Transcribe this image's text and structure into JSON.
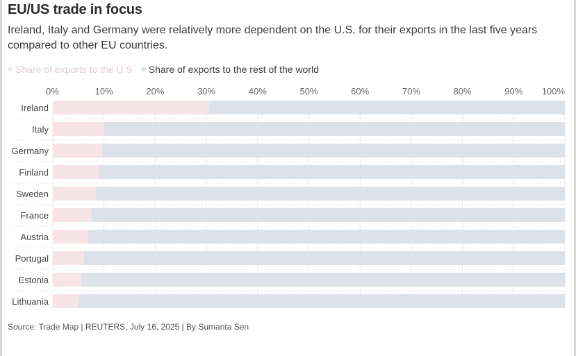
{
  "title": "EU/US trade in focus",
  "subtitle": "Ireland, Italy and Germany were relatively more dependent on the U.S. for their exports in the last five years compared to other EU countries.",
  "legend": [
    {
      "label": "Share of exports to the U.S",
      "color": "#f7e4e6"
    },
    {
      "label": "Share of exports to the rest of the world",
      "color": "#dde1ea"
    }
  ],
  "source": "Source: Trade Map | REUTERS, July 16, 2025 | By Sumanta Sen",
  "chart_data": {
    "type": "bar",
    "orientation": "horizontal",
    "stacked": true,
    "categories": [
      "Ireland",
      "Italy",
      "Germany",
      "Finland",
      "Sweden",
      "France",
      "Austria",
      "Portugal",
      "Estonia",
      "Lithuania"
    ],
    "series": [
      {
        "name": "Share of exports to the U.S",
        "color": "#f7e4e6",
        "values": [
          30.5,
          10.0,
          9.6,
          8.9,
          8.4,
          7.5,
          6.9,
          6.1,
          5.6,
          5.1
        ]
      },
      {
        "name": "Share of exports to the rest of the world",
        "color": "#dde1ea",
        "values": [
          69.5,
          90.0,
          90.4,
          91.1,
          91.6,
          92.5,
          93.1,
          93.9,
          94.4,
          94.9
        ]
      }
    ],
    "xlim": [
      0,
      100
    ],
    "xticks": [
      "0%",
      "10%",
      "20%",
      "30%",
      "40%",
      "50%",
      "60%",
      "70%",
      "80%",
      "90%",
      "100%"
    ],
    "tick_position": "top",
    "grid": true,
    "legend_position": "top-left"
  }
}
